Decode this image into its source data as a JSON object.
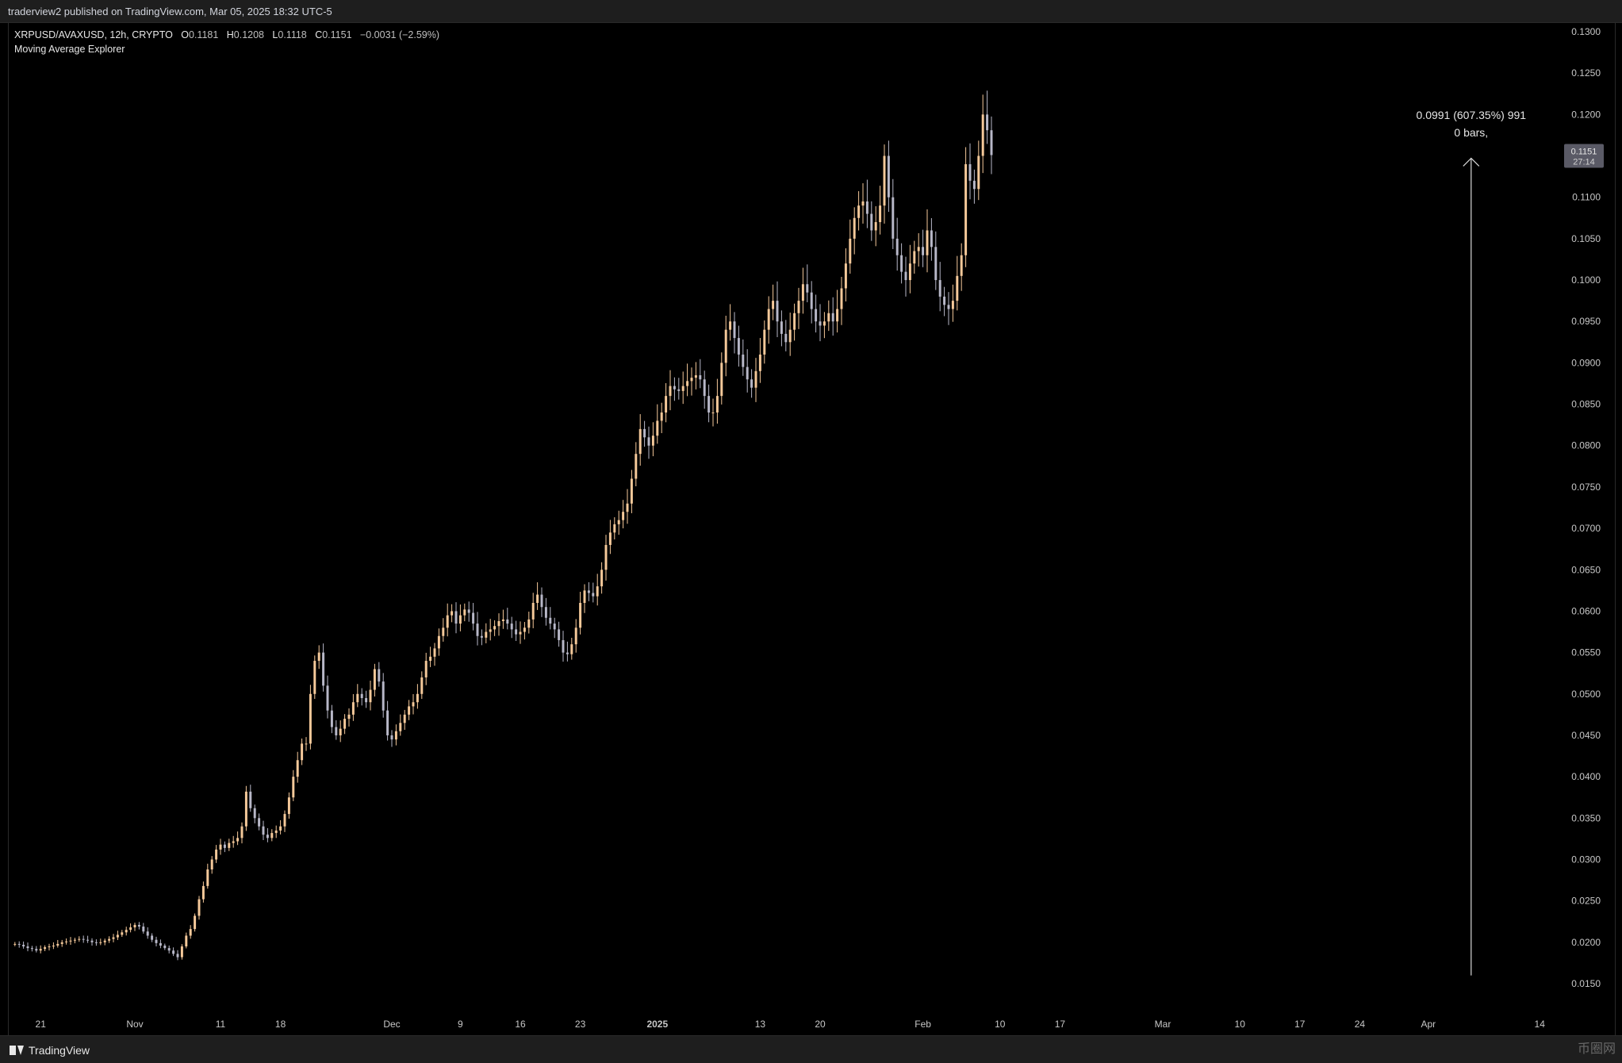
{
  "header": {
    "published": "traderview2 published on TradingView.com, Mar 05, 2025 18:32 UTC-5"
  },
  "legend": {
    "symbol": "XRPUSD/AVAXUSD, 12h, CRYPTO",
    "o_label": "O",
    "o_val": "0.1181",
    "h_label": "H",
    "h_val": "0.1208",
    "l_label": "L",
    "l_val": "0.1118",
    "c_label": "C",
    "c_val": "0.1151",
    "change": "−0.0031 (−2.59%)",
    "indicator": "Moving Average Explorer"
  },
  "footer": {
    "brand": "TradingView",
    "watermark": "币圈网"
  },
  "chart_data": {
    "type": "candlestick",
    "colors": {
      "up": "#f5c99a",
      "down": "#b8b8c8",
      "background": "#000000",
      "text": "#d1d4dc"
    },
    "y_axis": {
      "ylim": [
        0.0125,
        0.1325
      ],
      "ticks": [
        "0.1300",
        "0.1250",
        "0.1200",
        "0.1150",
        "0.1100",
        "0.1050",
        "0.1000",
        "0.0950",
        "0.0900",
        "0.0850",
        "0.0800",
        "0.0750",
        "0.0700",
        "0.0650",
        "0.0600",
        "0.0550",
        "0.0500",
        "0.0450",
        "0.0400",
        "0.0350",
        "0.0300",
        "0.0250",
        "0.0200",
        "0.0150"
      ],
      "last_price_label": "0.1151",
      "countdown_label": "27:14"
    },
    "x_axis": {
      "ticks": [
        {
          "label": "21",
          "x": "2024-10-21"
        },
        {
          "label": "Nov",
          "x": "2024-11-01"
        },
        {
          "label": "11",
          "x": "2024-11-11"
        },
        {
          "label": "18",
          "x": "2024-11-18"
        },
        {
          "label": "Dec",
          "x": "2024-12-01"
        },
        {
          "label": "9",
          "x": "2024-12-09"
        },
        {
          "label": "16",
          "x": "2024-12-16"
        },
        {
          "label": "23",
          "x": "2024-12-23"
        },
        {
          "label": "2025",
          "x": "2025-01-01",
          "bold": true
        },
        {
          "label": "13",
          "x": "2025-01-13"
        },
        {
          "label": "20",
          "x": "2025-01-20"
        },
        {
          "label": "Feb",
          "x": "2025-02-01"
        },
        {
          "label": "10",
          "x": "2025-02-10"
        },
        {
          "label": "17",
          "x": "2025-02-17"
        },
        {
          "label": "Mar",
          "x": "2025-03-01"
        },
        {
          "label": "10",
          "x": "2025-03-10"
        },
        {
          "label": "17",
          "x": "2025-03-17"
        },
        {
          "label": "24",
          "x": "2025-03-24"
        },
        {
          "label": "Apr",
          "x": "2025-04-01"
        },
        {
          "label": "14",
          "x": "2025-04-14"
        }
      ]
    },
    "annotation": {
      "line1": "0.0991 (607.35%) 991",
      "line2": "0 bars,",
      "from_x": "2025-04-06",
      "from_y": 0.016,
      "to_x": "2025-04-06",
      "to_y": 0.1151
    },
    "closes": [
      0.0198,
      0.0197,
      0.0195,
      0.0193,
      0.0192,
      0.019,
      0.0192,
      0.0194,
      0.0195,
      0.0196,
      0.0198,
      0.02,
      0.0201,
      0.0202,
      0.0203,
      0.0204,
      0.0203,
      0.0202,
      0.02,
      0.0199,
      0.02,
      0.0202,
      0.0204,
      0.0206,
      0.0209,
      0.0212,
      0.0215,
      0.0218,
      0.0221,
      0.0219,
      0.0213,
      0.0208,
      0.0203,
      0.0199,
      0.0196,
      0.0193,
      0.019,
      0.0186,
      0.0182,
      0.0195,
      0.0208,
      0.0216,
      0.0232,
      0.0252,
      0.0268,
      0.0288,
      0.03,
      0.0312,
      0.0318,
      0.0314,
      0.032,
      0.0322,
      0.0326,
      0.034,
      0.0382,
      0.0362,
      0.035,
      0.034,
      0.033,
      0.0326,
      0.0332,
      0.0335,
      0.034,
      0.0355,
      0.0375,
      0.04,
      0.042,
      0.044,
      0.044,
      0.05,
      0.054,
      0.055,
      0.051,
      0.048,
      0.046,
      0.045,
      0.0458,
      0.047,
      0.0475,
      0.049,
      0.05,
      0.0495,
      0.049,
      0.0505,
      0.053,
      0.0515,
      0.048,
      0.045,
      0.0445,
      0.0455,
      0.0465,
      0.0475,
      0.0485,
      0.049,
      0.05,
      0.052,
      0.054,
      0.0545,
      0.0555,
      0.057,
      0.058,
      0.0595,
      0.06,
      0.0585,
      0.0595,
      0.0602,
      0.0598,
      0.0585,
      0.057,
      0.0568,
      0.0575,
      0.0578,
      0.0582,
      0.0588,
      0.059,
      0.0585,
      0.0578,
      0.0572,
      0.0575,
      0.058,
      0.059,
      0.061,
      0.062,
      0.0605,
      0.0592,
      0.0585,
      0.0578,
      0.0565,
      0.055,
      0.0548,
      0.056,
      0.058,
      0.061,
      0.0625,
      0.0622,
      0.0618,
      0.063,
      0.065,
      0.068,
      0.0695,
      0.0705,
      0.071,
      0.072,
      0.073,
      0.076,
      0.079,
      0.082,
      0.081,
      0.08,
      0.0812,
      0.083,
      0.084,
      0.086,
      0.0872,
      0.0868,
      0.0866,
      0.0872,
      0.0878,
      0.0882,
      0.0885,
      0.088,
      0.086,
      0.084,
      0.084,
      0.086,
      0.09,
      0.094,
      0.095,
      0.093,
      0.091,
      0.0895,
      0.088,
      0.087,
      0.089,
      0.091,
      0.094,
      0.0965,
      0.0975,
      0.095,
      0.0935,
      0.0925,
      0.094,
      0.096,
      0.0975,
      0.0995,
      0.0985,
      0.0965,
      0.095,
      0.0945,
      0.095,
      0.096,
      0.095,
      0.0965,
      0.099,
      0.102,
      0.105,
      0.1075,
      0.109,
      0.1095,
      0.108,
      0.106,
      0.107,
      0.109,
      0.115,
      0.11,
      0.105,
      0.103,
      0.101,
      0.1,
      0.102,
      0.1035,
      0.104,
      0.103,
      0.106,
      0.104,
      0.1,
      0.098,
      0.097,
      0.0965,
      0.0975,
      0.1005,
      0.103,
      0.114,
      0.112,
      0.111,
      0.115,
      0.12,
      0.1181,
      0.1151
    ],
    "series_start": "2024-10-18",
    "interval_hours": 12
  }
}
